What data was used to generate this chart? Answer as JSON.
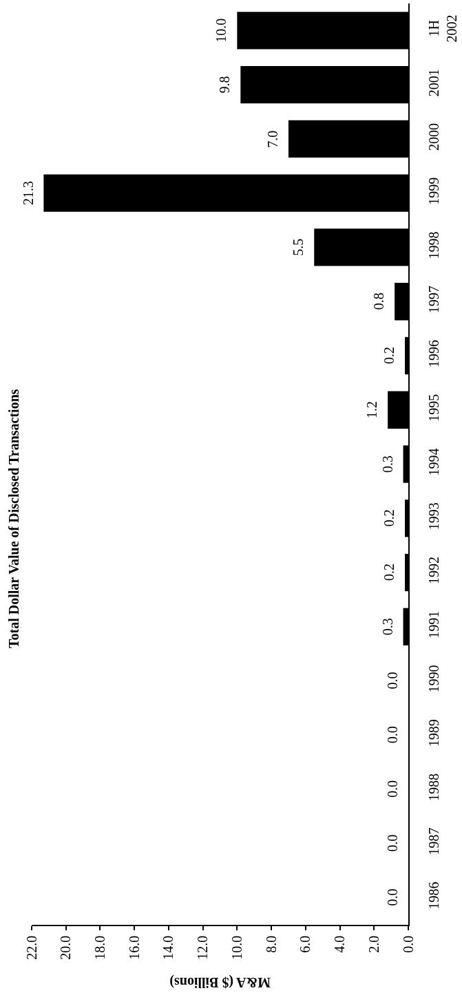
{
  "chart_data": {
    "type": "bar",
    "orientation": "horizontal",
    "title": "Total Dollar Value of Disclosed Transactions",
    "xlabel": "M&A ($ Billions)",
    "categories": [
      "1H\n2002",
      "2001",
      "2000",
      "1999",
      "1998",
      "1997",
      "1996",
      "1995",
      "1994",
      "1993",
      "1992",
      "1991",
      "1990",
      "1989",
      "1988",
      "1987",
      "1986"
    ],
    "values": [
      10.0,
      9.8,
      7.0,
      21.3,
      5.5,
      0.8,
      0.2,
      1.2,
      0.3,
      0.2,
      0.2,
      0.3,
      0.0,
      0.0,
      0.0,
      0.0,
      0.0
    ],
    "value_labels": [
      "10.0",
      "9.8",
      "7.0",
      "21.3",
      "5.5",
      "0.8",
      "0.2",
      "1.2",
      "0.3",
      "0.2",
      "0.2",
      "0.3",
      "0.0",
      "0.0",
      "0.0",
      "0.0",
      "0.0"
    ],
    "color": "#000000",
    "xlim": [
      22,
      0
    ],
    "xticks": [
      {
        "value": 0,
        "label": "0.0"
      },
      {
        "value": 2,
        "label": "2.0"
      },
      {
        "value": 4,
        "label": "4.0"
      },
      {
        "value": 6,
        "label": "6.0"
      },
      {
        "value": 8,
        "label": "8.0"
      },
      {
        "value": 10,
        "label": "10.0"
      },
      {
        "value": 12,
        "label": "12.0"
      },
      {
        "value": 14,
        "label": "14.0"
      },
      {
        "value": 16,
        "label": "16.0"
      },
      {
        "value": 18,
        "label": "18.0"
      },
      {
        "value": 20,
        "label": "20.0"
      },
      {
        "value": 22,
        "label": "22.0"
      }
    ],
    "grid": false
  }
}
